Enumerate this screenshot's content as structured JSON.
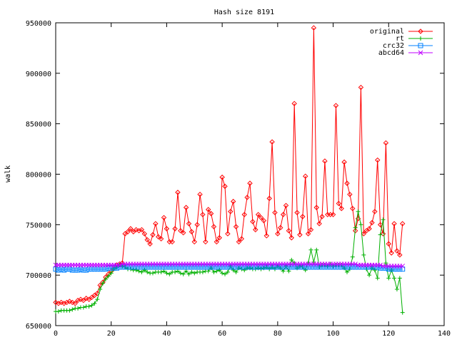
{
  "chart_data": {
    "type": "line",
    "title": "Hash size 8191",
    "xlabel": "",
    "ylabel": "walk",
    "xlim": [
      0,
      140
    ],
    "ylim": [
      650000,
      950000
    ],
    "xticks": [
      0,
      20,
      40,
      60,
      80,
      100,
      120,
      140
    ],
    "yticks": [
      650000,
      700000,
      750000,
      800000,
      850000,
      900000,
      950000
    ],
    "grid": false,
    "legend_position": "top-right",
    "series": [
      {
        "name": "original",
        "color": "#ff0000",
        "marker": "diamond",
        "x": [
          0,
          1,
          2,
          3,
          4,
          5,
          6,
          7,
          8,
          9,
          10,
          11,
          12,
          13,
          14,
          15,
          16,
          17,
          18,
          19,
          20,
          21,
          22,
          23,
          24,
          25,
          26,
          27,
          28,
          29,
          30,
          31,
          32,
          33,
          34,
          35,
          36,
          37,
          38,
          39,
          40,
          41,
          42,
          43,
          44,
          45,
          46,
          47,
          48,
          49,
          50,
          51,
          52,
          53,
          54,
          55,
          56,
          57,
          58,
          59,
          60,
          61,
          62,
          63,
          64,
          65,
          66,
          67,
          68,
          69,
          70,
          71,
          72,
          73,
          74,
          75,
          76,
          77,
          78,
          79,
          80,
          81,
          82,
          83,
          84,
          85,
          86,
          87,
          88,
          89,
          90,
          91,
          92,
          93,
          94,
          95,
          96,
          97,
          98,
          99,
          100,
          101,
          102,
          103,
          104,
          105,
          106,
          107,
          108,
          109,
          110,
          111,
          112,
          113,
          114,
          115,
          116,
          117,
          118,
          119,
          120,
          121,
          122,
          123,
          124,
          125
        ],
        "y": [
          673000,
          672000,
          673000,
          672000,
          673000,
          674000,
          673000,
          672000,
          675000,
          676000,
          675000,
          677000,
          676000,
          678000,
          680000,
          682000,
          690000,
          693000,
          698000,
          701000,
          704000,
          708000,
          710000,
          711000,
          712000,
          741000,
          743000,
          746000,
          743000,
          745000,
          744000,
          745000,
          741000,
          735000,
          731000,
          740000,
          751000,
          738000,
          736000,
          757000,
          746000,
          733000,
          733000,
          746000,
          782000,
          744000,
          742000,
          767000,
          751000,
          743000,
          733000,
          750000,
          780000,
          760000,
          733000,
          765000,
          761000,
          748000,
          733000,
          737000,
          797000,
          788000,
          741000,
          763000,
          773000,
          748000,
          733000,
          736000,
          760000,
          777000,
          791000,
          753000,
          745000,
          760000,
          757000,
          754000,
          739000,
          776000,
          832000,
          762000,
          741000,
          747000,
          760000,
          769000,
          744000,
          737000,
          870000,
          762000,
          740000,
          758000,
          798000,
          741000,
          745000,
          945000,
          767000,
          751000,
          758000,
          813000,
          760000,
          760000,
          760000,
          868000,
          771000,
          766000,
          812000,
          791000,
          780000,
          766000,
          744000,
          756000,
          886000,
          741000,
          744000,
          746000,
          752000,
          763000,
          814000,
          750000,
          741000,
          831000,
          731000,
          722000,
          751000,
          724000,
          720000,
          751000
        ]
      },
      {
        "name": "rt",
        "color": "#00b000",
        "marker": "plus",
        "x": [
          0,
          1,
          2,
          3,
          4,
          5,
          6,
          7,
          8,
          9,
          10,
          11,
          12,
          13,
          14,
          15,
          16,
          17,
          18,
          19,
          20,
          21,
          22,
          23,
          24,
          25,
          26,
          27,
          28,
          29,
          30,
          31,
          32,
          33,
          34,
          35,
          36,
          37,
          38,
          39,
          40,
          41,
          42,
          43,
          44,
          45,
          46,
          47,
          48,
          49,
          50,
          51,
          52,
          53,
          54,
          55,
          56,
          57,
          58,
          59,
          60,
          61,
          62,
          63,
          64,
          65,
          66,
          67,
          68,
          69,
          70,
          71,
          72,
          73,
          74,
          75,
          76,
          77,
          78,
          79,
          80,
          81,
          82,
          83,
          84,
          85,
          86,
          87,
          88,
          89,
          90,
          91,
          92,
          93,
          94,
          95,
          96,
          97,
          98,
          99,
          100,
          101,
          102,
          103,
          104,
          105,
          106,
          107,
          108,
          109,
          110,
          111,
          112,
          113,
          114,
          115,
          116,
          117,
          118,
          119,
          120,
          121,
          122,
          123,
          124,
          125
        ],
        "y": [
          664000,
          664000,
          665000,
          665000,
          665000,
          665000,
          666000,
          667000,
          667000,
          668000,
          668000,
          669000,
          669000,
          670000,
          672000,
          676000,
          686000,
          692000,
          696000,
          699000,
          702000,
          706000,
          708000,
          710000,
          709000,
          708000,
          706000,
          706000,
          705000,
          705000,
          704000,
          703000,
          705000,
          703000,
          702000,
          702000,
          703000,
          703000,
          703000,
          704000,
          702000,
          701000,
          703000,
          703000,
          704000,
          702000,
          701000,
          704000,
          701000,
          703000,
          702000,
          703000,
          703000,
          703000,
          704000,
          704000,
          707000,
          703000,
          704000,
          705000,
          702000,
          701000,
          703000,
          709000,
          705000,
          703000,
          707000,
          706000,
          705000,
          707000,
          707000,
          706000,
          706000,
          707000,
          706000,
          707000,
          708000,
          706000,
          708000,
          706000,
          709000,
          707000,
          704000,
          709000,
          704000,
          715000,
          712000,
          707000,
          709000,
          708000,
          705000,
          712000,
          725000,
          713000,
          725000,
          708000,
          710000,
          710000,
          709000,
          711000,
          709000,
          710000,
          710000,
          710000,
          707000,
          703000,
          706000,
          718000,
          747000,
          763000,
          750000,
          720000,
          706000,
          700000,
          707000,
          705000,
          697000,
          740000,
          755000,
          712000,
          697000,
          705000,
          697000,
          686000,
          697000,
          663000
        ]
      },
      {
        "name": "crc32",
        "color": "#0080ff",
        "marker": "square",
        "x": [
          0,
          1,
          2,
          3,
          4,
          5,
          6,
          7,
          8,
          9,
          10,
          11,
          12,
          13,
          14,
          15,
          16,
          17,
          18,
          19,
          20,
          21,
          22,
          23,
          24,
          25,
          26,
          27,
          28,
          29,
          30,
          31,
          32,
          33,
          34,
          35,
          36,
          37,
          38,
          39,
          40,
          41,
          42,
          43,
          44,
          45,
          46,
          47,
          48,
          49,
          50,
          51,
          52,
          53,
          54,
          55,
          56,
          57,
          58,
          59,
          60,
          61,
          62,
          63,
          64,
          65,
          66,
          67,
          68,
          69,
          70,
          71,
          72,
          73,
          74,
          75,
          76,
          77,
          78,
          79,
          80,
          81,
          82,
          83,
          84,
          85,
          86,
          87,
          88,
          89,
          90,
          91,
          92,
          93,
          94,
          95,
          96,
          97,
          98,
          99,
          100,
          101,
          102,
          103,
          104,
          105,
          106,
          107,
          108,
          109,
          110,
          111,
          112,
          113,
          114,
          115,
          116,
          117,
          118,
          119,
          120,
          121,
          122,
          123,
          124,
          125
        ],
        "y": [
          706000,
          705000,
          706000,
          705000,
          706000,
          706000,
          705000,
          705000,
          705000,
          706000,
          705000,
          705000,
          706000,
          706000,
          706000,
          706000,
          706000,
          706000,
          706000,
          707000,
          707000,
          707000,
          707000,
          708000,
          708000,
          708000,
          708000,
          708000,
          708000,
          708000,
          708000,
          708000,
          708000,
          708000,
          708000,
          708000,
          708000,
          708000,
          708000,
          708000,
          708000,
          708000,
          708000,
          708000,
          708000,
          708000,
          708000,
          708000,
          708000,
          708000,
          708000,
          708000,
          708000,
          708000,
          708000,
          708000,
          708000,
          708000,
          708000,
          708000,
          708000,
          708000,
          708000,
          708000,
          708000,
          708000,
          708000,
          708000,
          708000,
          708000,
          708000,
          708000,
          708000,
          708000,
          708000,
          708000,
          708000,
          708000,
          708000,
          708000,
          708000,
          708000,
          708000,
          708000,
          708000,
          708000,
          708000,
          708000,
          708000,
          708000,
          708000,
          708000,
          708000,
          708000,
          708000,
          708000,
          708000,
          708000,
          708000,
          708000,
          708000,
          708000,
          708000,
          708000,
          708000,
          708000,
          708000,
          708000,
          708000,
          708000,
          708000,
          708000,
          708000,
          708000,
          708000,
          708000,
          708000,
          707000,
          707000,
          707000,
          706000,
          706000,
          706000,
          706000,
          706000,
          706000
        ]
      },
      {
        "name": "abcd64",
        "color": "#c000ff",
        "marker": "cross",
        "x": [
          0,
          1,
          2,
          3,
          4,
          5,
          6,
          7,
          8,
          9,
          10,
          11,
          12,
          13,
          14,
          15,
          16,
          17,
          18,
          19,
          20,
          21,
          22,
          23,
          24,
          25,
          26,
          27,
          28,
          29,
          30,
          31,
          32,
          33,
          34,
          35,
          36,
          37,
          38,
          39,
          40,
          41,
          42,
          43,
          44,
          45,
          46,
          47,
          48,
          49,
          50,
          51,
          52,
          53,
          54,
          55,
          56,
          57,
          58,
          59,
          60,
          61,
          62,
          63,
          64,
          65,
          66,
          67,
          68,
          69,
          70,
          71,
          72,
          73,
          74,
          75,
          76,
          77,
          78,
          79,
          80,
          81,
          82,
          83,
          84,
          85,
          86,
          87,
          88,
          89,
          90,
          91,
          92,
          93,
          94,
          95,
          96,
          97,
          98,
          99,
          100,
          101,
          102,
          103,
          104,
          105,
          106,
          107,
          108,
          109,
          110,
          111,
          112,
          113,
          114,
          115,
          116,
          117,
          118,
          119,
          120,
          121,
          122,
          123,
          124,
          125
        ],
        "y": [
          710000,
          710000,
          710000,
          710000,
          710000,
          710000,
          710000,
          710000,
          710000,
          710000,
          710000,
          710000,
          710000,
          710000,
          710000,
          710000,
          710000,
          710000,
          710000,
          710000,
          710000,
          710000,
          710000,
          710000,
          711000,
          711000,
          711000,
          711000,
          711000,
          711000,
          711000,
          711000,
          711000,
          711000,
          711000,
          711000,
          711000,
          711000,
          711000,
          711000,
          711000,
          711000,
          711000,
          711000,
          711000,
          711000,
          711000,
          711000,
          711000,
          711000,
          711000,
          711000,
          711000,
          711000,
          711000,
          711000,
          711000,
          711000,
          711000,
          711000,
          711000,
          711000,
          711000,
          711000,
          711000,
          711000,
          711000,
          711000,
          711000,
          711000,
          711000,
          711000,
          711000,
          711000,
          711000,
          711000,
          711000,
          711000,
          711000,
          711000,
          711000,
          711000,
          711000,
          711000,
          711000,
          711000,
          711000,
          711000,
          711000,
          711000,
          711000,
          711000,
          711000,
          711000,
          711000,
          711000,
          711000,
          711000,
          711000,
          711000,
          711000,
          711000,
          711000,
          711000,
          711000,
          711000,
          711000,
          711000,
          711000,
          710000,
          710000,
          710000,
          710000,
          710000,
          710000,
          710000,
          710000,
          710000,
          709000,
          709000,
          709000,
          709000,
          709000,
          709000,
          709000,
          709000
        ]
      }
    ]
  }
}
